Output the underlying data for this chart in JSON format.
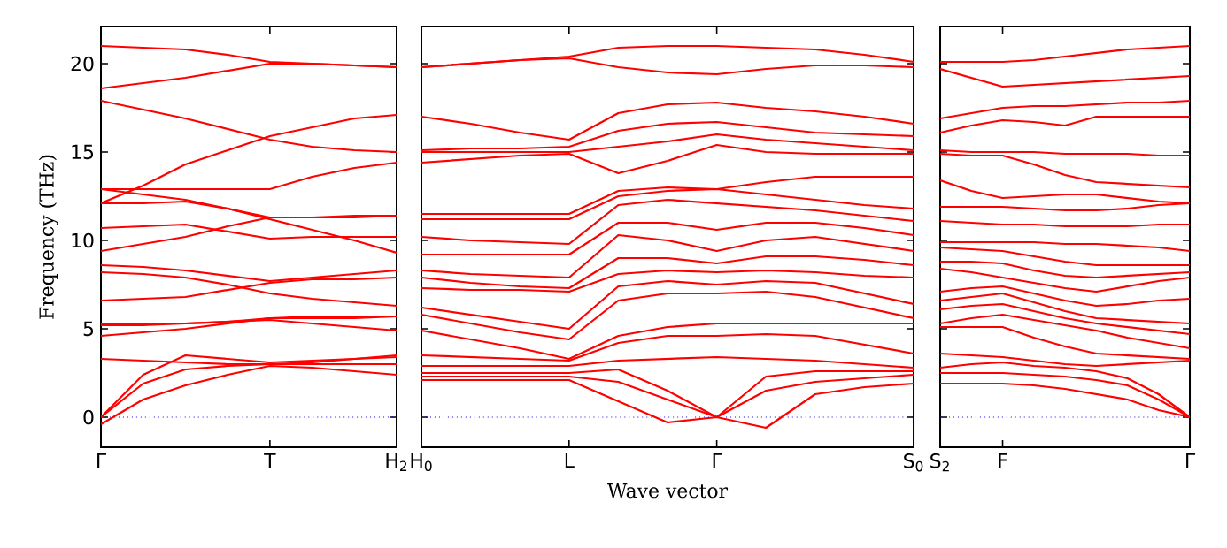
{
  "chart_data": [
    {
      "type": "line",
      "ylabel": "Frequency (THz)",
      "color": "#ff0000",
      "line_style": "solid",
      "marker": "none",
      "ylim": [
        -1.7,
        22.1
      ],
      "yticks": [
        0,
        5,
        10,
        15,
        20
      ],
      "categories": [
        "Γ",
        null,
        null,
        null,
        "T",
        null,
        null,
        "H$_{2}$"
      ],
      "ref_lines": [
        {
          "axis": "y",
          "value": 0,
          "color": "#0000ff",
          "line_style": "dotted"
        }
      ],
      "series": [
        {
          "values": [
            21.0,
            20.9,
            20.8,
            20.5,
            20.1,
            20.0,
            19.9,
            19.8
          ]
        },
        {
          "values": [
            18.6,
            18.9,
            19.2,
            19.6,
            20.0,
            20.0,
            19.9,
            19.8
          ]
        },
        {
          "values": [
            17.9,
            17.4,
            16.9,
            16.3,
            15.7,
            15.3,
            15.1,
            15.0
          ]
        },
        {
          "values": [
            12.1,
            13.1,
            14.3,
            15.1,
            15.9,
            16.4,
            16.9,
            17.1
          ]
        },
        {
          "values": [
            12.9,
            12.9,
            12.9,
            12.9,
            12.9,
            13.6,
            14.1,
            14.4
          ]
        },
        {
          "values": [
            12.9,
            12.6,
            12.3,
            11.8,
            11.2,
            10.6,
            10.0,
            9.3
          ]
        },
        {
          "values": [
            12.1,
            12.1,
            12.2,
            11.8,
            11.3,
            11.3,
            11.3,
            11.4
          ]
        },
        {
          "values": [
            10.7,
            10.8,
            10.9,
            10.5,
            10.1,
            10.2,
            10.2,
            10.2
          ]
        },
        {
          "values": [
            9.4,
            9.8,
            10.2,
            10.8,
            11.3,
            11.3,
            11.4,
            11.4
          ]
        },
        {
          "values": [
            8.6,
            8.5,
            8.3,
            8.0,
            7.7,
            7.9,
            8.1,
            8.3
          ]
        },
        {
          "values": [
            8.2,
            8.1,
            7.9,
            7.5,
            7.0,
            6.7,
            6.5,
            6.3
          ]
        },
        {
          "values": [
            6.6,
            6.7,
            6.8,
            7.2,
            7.6,
            7.8,
            7.8,
            7.9
          ]
        },
        {
          "values": [
            5.3,
            5.3,
            5.3,
            5.4,
            5.6,
            5.6,
            5.6,
            5.7
          ]
        },
        {
          "values": [
            5.2,
            5.2,
            5.3,
            5.4,
            5.5,
            5.3,
            5.1,
            4.9
          ]
        },
        {
          "values": [
            4.6,
            4.8,
            5.0,
            5.3,
            5.6,
            5.7,
            5.7,
            5.7
          ]
        },
        {
          "values": [
            3.3,
            3.2,
            3.1,
            3.0,
            3.0,
            3.1,
            3.3,
            3.5
          ]
        },
        {
          "values": [
            0,
            2.4,
            3.5,
            3.3,
            3.1,
            3.2,
            3.3,
            3.4
          ]
        },
        {
          "values": [
            0,
            1.9,
            2.7,
            2.9,
            3.0,
            3.0,
            3.0,
            3.0
          ]
        },
        {
          "values": [
            -0.4,
            1.0,
            1.8,
            2.4,
            2.9,
            2.8,
            2.6,
            2.4
          ]
        }
      ]
    },
    {
      "type": "line",
      "xlabel": "Wave vector",
      "color": "#ff0000",
      "line_style": "solid",
      "marker": "none",
      "tick_labels": "x",
      "ylim": [
        -1.7,
        22.1
      ],
      "yticks": [
        0,
        5,
        10,
        15,
        20
      ],
      "categories": [
        "H$_{0}$",
        null,
        null,
        "L",
        null,
        null,
        "Γ",
        null,
        null,
        null,
        "S$_{0}$"
      ],
      "ref_lines": [
        {
          "axis": "y",
          "value": 0,
          "color": "#0000ff",
          "line_style": "dotted"
        }
      ],
      "series": [
        {
          "values": [
            19.8,
            20.0,
            20.2,
            20.4,
            20.9,
            21.0,
            21.0,
            20.9,
            20.8,
            20.5,
            20.1
          ]
        },
        {
          "values": [
            19.8,
            20.0,
            20.2,
            20.3,
            19.8,
            19.5,
            19.4,
            19.7,
            19.9,
            19.9,
            19.8
          ]
        },
        {
          "values": [
            17.0,
            16.6,
            16.1,
            15.7,
            17.2,
            17.7,
            17.8,
            17.5,
            17.3,
            17.0,
            16.6
          ]
        },
        {
          "values": [
            15.1,
            15.2,
            15.2,
            15.3,
            16.2,
            16.6,
            16.7,
            16.4,
            16.1,
            16.0,
            15.9
          ]
        },
        {
          "values": [
            15.0,
            15.0,
            15.0,
            15.0,
            15.3,
            15.6,
            16.0,
            15.7,
            15.5,
            15.3,
            15.1
          ]
        },
        {
          "values": [
            14.4,
            14.6,
            14.8,
            14.9,
            13.8,
            14.5,
            15.4,
            15.0,
            14.9,
            14.9,
            14.9
          ]
        },
        {
          "values": [
            11.5,
            11.5,
            11.5,
            11.5,
            12.8,
            13.0,
            12.9,
            13.3,
            13.6,
            13.6,
            13.6
          ]
        },
        {
          "values": [
            11.2,
            11.2,
            11.2,
            11.2,
            12.5,
            12.8,
            12.9,
            12.6,
            12.3,
            12.0,
            11.8
          ]
        },
        {
          "values": [
            10.2,
            10.0,
            9.9,
            9.8,
            12.0,
            12.3,
            12.1,
            11.9,
            11.7,
            11.4,
            11.1
          ]
        },
        {
          "values": [
            9.2,
            9.2,
            9.2,
            9.2,
            11.0,
            11.0,
            10.6,
            11.0,
            11.0,
            10.7,
            10.3
          ]
        },
        {
          "values": [
            8.3,
            8.1,
            8.0,
            7.9,
            10.3,
            10.0,
            9.4,
            10.0,
            10.2,
            9.8,
            9.4
          ]
        },
        {
          "values": [
            7.9,
            7.6,
            7.4,
            7.3,
            9.0,
            9.0,
            8.7,
            9.1,
            9.1,
            8.9,
            8.6
          ]
        },
        {
          "values": [
            7.3,
            7.2,
            7.2,
            7.1,
            8.1,
            8.3,
            8.2,
            8.3,
            8.2,
            8.0,
            7.9
          ]
        },
        {
          "values": [
            6.2,
            5.8,
            5.4,
            5.0,
            7.4,
            7.7,
            7.5,
            7.7,
            7.6,
            7.0,
            6.4
          ]
        },
        {
          "values": [
            5.8,
            5.3,
            4.8,
            4.4,
            6.6,
            7.0,
            7.0,
            7.1,
            6.8,
            6.2,
            5.6
          ]
        },
        {
          "values": [
            4.9,
            4.4,
            3.9,
            3.3,
            4.6,
            5.1,
            5.3,
            5.3,
            5.3,
            5.3,
            5.3
          ]
        },
        {
          "values": [
            3.5,
            3.4,
            3.3,
            3.2,
            4.2,
            4.6,
            4.6,
            4.7,
            4.6,
            4.1,
            3.6
          ]
        },
        {
          "values": [
            2.9,
            2.9,
            2.9,
            2.9,
            3.2,
            3.3,
            3.4,
            3.3,
            3.2,
            3.0,
            2.8
          ]
        },
        {
          "values": [
            2.5,
            2.5,
            2.5,
            2.5,
            2.7,
            1.5,
            0,
            2.3,
            2.6,
            2.6,
            2.6
          ]
        },
        {
          "values": [
            2.3,
            2.3,
            2.3,
            2.3,
            2.0,
            1.0,
            0,
            1.5,
            2.0,
            2.2,
            2.4
          ]
        },
        {
          "values": [
            2.1,
            2.1,
            2.1,
            2.1,
            0.9,
            -0.3,
            0,
            -0.6,
            1.3,
            1.7,
            1.9
          ]
        }
      ]
    },
    {
      "type": "line",
      "color": "#ff0000",
      "line_style": "solid",
      "marker": "none",
      "tick_labels": "x",
      "ylim": [
        -1.7,
        22.1
      ],
      "yticks": [
        0,
        5,
        10,
        15,
        20
      ],
      "categories": [
        "S$_{2}$",
        null,
        "F",
        null,
        null,
        null,
        null,
        null,
        "Γ"
      ],
      "ref_lines": [
        {
          "axis": "y",
          "value": 0,
          "color": "#0000ff",
          "line_style": "dotted"
        }
      ],
      "series": [
        {
          "values": [
            20.1,
            20.1,
            20.1,
            20.2,
            20.4,
            20.6,
            20.8,
            20.9,
            21.0
          ]
        },
        {
          "values": [
            19.7,
            19.2,
            18.7,
            18.8,
            18.9,
            19.0,
            19.1,
            19.2,
            19.3
          ]
        },
        {
          "values": [
            16.9,
            17.2,
            17.5,
            17.6,
            17.6,
            17.7,
            17.8,
            17.8,
            17.9
          ]
        },
        {
          "values": [
            16.1,
            16.5,
            16.8,
            16.7,
            16.5,
            17.0,
            17.0,
            17.0,
            17.0
          ]
        },
        {
          "values": [
            15.1,
            15.0,
            15.0,
            15.0,
            14.9,
            14.9,
            14.9,
            14.8,
            14.8
          ]
        },
        {
          "values": [
            14.9,
            14.8,
            14.8,
            14.3,
            13.7,
            13.3,
            13.2,
            13.1,
            13.0
          ]
        },
        {
          "values": [
            13.4,
            12.8,
            12.4,
            12.5,
            12.6,
            12.6,
            12.4,
            12.2,
            12.1
          ]
        },
        {
          "values": [
            11.9,
            11.9,
            11.9,
            11.8,
            11.7,
            11.7,
            11.8,
            12.0,
            12.1
          ]
        },
        {
          "values": [
            11.1,
            11.0,
            10.9,
            10.9,
            10.8,
            10.8,
            10.8,
            10.9,
            10.9
          ]
        },
        {
          "values": [
            9.9,
            9.9,
            9.9,
            9.9,
            9.8,
            9.8,
            9.7,
            9.6,
            9.4
          ]
        },
        {
          "values": [
            9.6,
            9.5,
            9.4,
            9.1,
            8.8,
            8.6,
            8.6,
            8.6,
            8.6
          ]
        },
        {
          "values": [
            8.8,
            8.8,
            8.7,
            8.3,
            8.0,
            7.9,
            8.0,
            8.1,
            8.2
          ]
        },
        {
          "values": [
            8.4,
            8.2,
            7.9,
            7.6,
            7.3,
            7.1,
            7.4,
            7.7,
            7.9
          ]
        },
        {
          "values": [
            7.1,
            7.3,
            7.4,
            7.0,
            6.6,
            6.3,
            6.4,
            6.6,
            6.7
          ]
        },
        {
          "values": [
            6.6,
            6.8,
            7.0,
            6.5,
            6.0,
            5.6,
            5.5,
            5.4,
            5.3
          ]
        },
        {
          "values": [
            6.1,
            6.3,
            6.4,
            6.0,
            5.6,
            5.3,
            5.1,
            4.9,
            4.7
          ]
        },
        {
          "values": [
            5.3,
            5.6,
            5.8,
            5.5,
            5.2,
            4.9,
            4.5,
            4.2,
            3.9
          ]
        },
        {
          "values": [
            5.1,
            5.1,
            5.1,
            4.5,
            4.0,
            3.6,
            3.5,
            3.4,
            3.3
          ]
        },
        {
          "values": [
            3.6,
            3.5,
            3.4,
            3.2,
            3.0,
            2.9,
            3.0,
            3.1,
            3.2
          ]
        },
        {
          "values": [
            2.8,
            3.0,
            3.1,
            2.9,
            2.8,
            2.6,
            2.2,
            1.3,
            0
          ]
        },
        {
          "values": [
            2.5,
            2.5,
            2.5,
            2.4,
            2.3,
            2.1,
            1.8,
            1.0,
            0
          ]
        },
        {
          "values": [
            1.9,
            1.9,
            1.9,
            1.8,
            1.6,
            1.3,
            1.0,
            0.4,
            0
          ]
        }
      ]
    }
  ]
}
